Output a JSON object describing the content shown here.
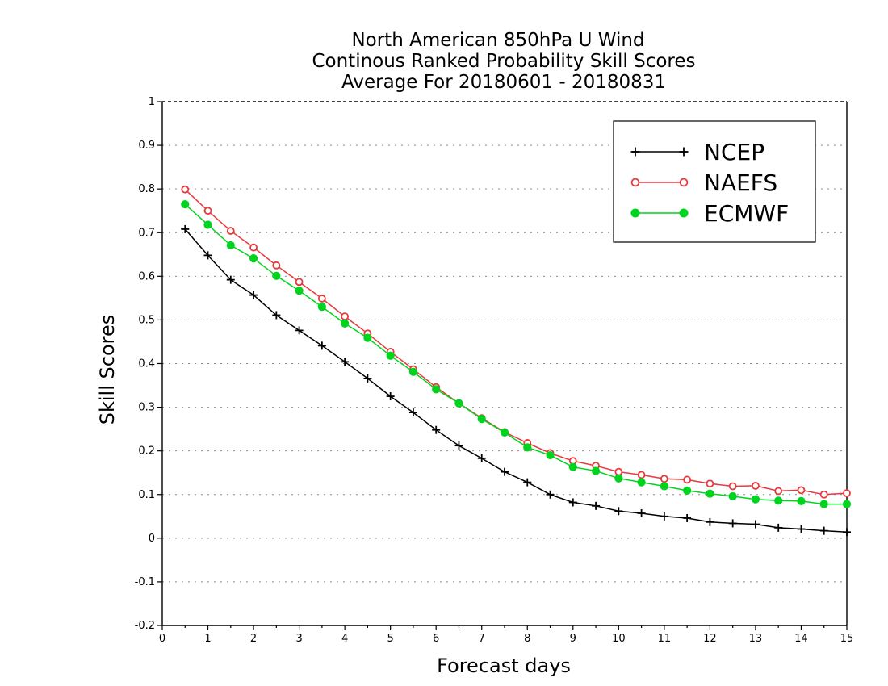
{
  "chart_data": {
    "type": "line",
    "title_lines": [
      "North American 850hPa U Wind",
      "Continous Ranked Probability Skill Scores",
      "Average For 20180601 - 20180831"
    ],
    "xlabel": "Forecast days",
    "ylabel": "Skill Scores",
    "xlim": [
      0,
      15
    ],
    "ylim": [
      -0.2,
      1
    ],
    "x_ticks": [
      0,
      1,
      2,
      3,
      4,
      5,
      6,
      7,
      8,
      9,
      10,
      11,
      12,
      13,
      14,
      15
    ],
    "x_tick_labels": [
      "0",
      "1",
      "2",
      "3",
      "4",
      "5",
      "6",
      "7",
      "8",
      "9",
      "10",
      "11",
      "12",
      "13",
      "14",
      "15"
    ],
    "y_ticks": [
      -0.2,
      -0.1,
      0,
      0.1,
      0.2,
      0.3,
      0.4,
      0.5,
      0.6,
      0.7,
      0.8,
      0.9,
      1
    ],
    "y_tick_labels": [
      "-0.2",
      "-0.1",
      "0",
      "0.1",
      "0.2",
      "0.3",
      "0.4",
      "0.5",
      "0.6",
      "0.7",
      "0.8",
      "0.9",
      "1"
    ],
    "grid": "horizontal dotted",
    "legend_position": "top-right",
    "x": [
      0.5,
      1,
      1.5,
      2,
      2.5,
      3,
      3.5,
      4,
      4.5,
      5,
      5.5,
      6,
      6.5,
      7,
      7.5,
      8,
      8.5,
      9,
      9.5,
      10,
      10.5,
      11,
      11.5,
      12,
      12.5,
      13,
      13.5,
      14,
      14.5,
      15
    ],
    "series": [
      {
        "name": "NCEP",
        "color": "#000000",
        "marker": "plus",
        "values": [
          0.708,
          0.648,
          0.592,
          0.557,
          0.511,
          0.476,
          0.441,
          0.404,
          0.366,
          0.325,
          0.288,
          0.248,
          0.212,
          0.183,
          0.152,
          0.128,
          0.1,
          0.082,
          0.074,
          0.062,
          0.057,
          0.05,
          0.046,
          0.037,
          0.034,
          0.032,
          0.024,
          0.021,
          0.017,
          0.014
        ]
      },
      {
        "name": "NAEFS",
        "color": "#e8393c",
        "marker": "open-circle",
        "values": [
          0.799,
          0.75,
          0.704,
          0.666,
          0.625,
          0.587,
          0.549,
          0.508,
          0.469,
          0.427,
          0.387,
          0.346,
          0.309,
          0.275,
          0.243,
          0.218,
          0.195,
          0.177,
          0.166,
          0.152,
          0.145,
          0.136,
          0.134,
          0.125,
          0.119,
          0.12,
          0.108,
          0.11,
          0.1,
          0.103
        ]
      },
      {
        "name": "ECMWF",
        "color": "#00d41e",
        "marker": "filled-circle",
        "values": [
          0.765,
          0.718,
          0.671,
          0.641,
          0.601,
          0.567,
          0.53,
          0.492,
          0.459,
          0.418,
          0.381,
          0.341,
          0.309,
          0.273,
          0.242,
          0.208,
          0.19,
          0.163,
          0.154,
          0.137,
          0.128,
          0.119,
          0.109,
          0.102,
          0.096,
          0.089,
          0.086,
          0.085,
          0.078,
          0.078
        ]
      }
    ]
  }
}
